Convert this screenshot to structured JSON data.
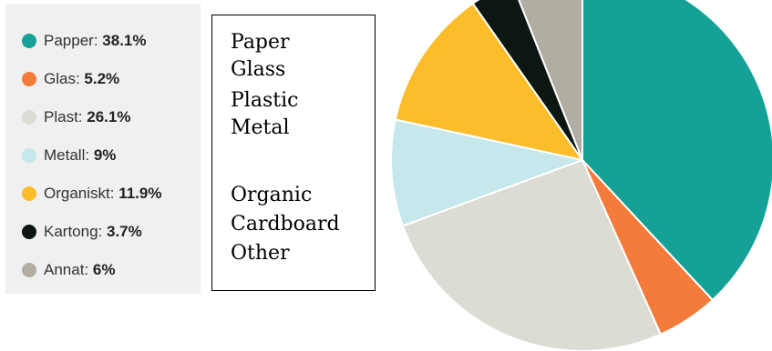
{
  "chart_data": {
    "type": "pie",
    "slices": [
      {
        "label": "Papper",
        "value": 38.1,
        "display": "38.1%",
        "color": "#16a196"
      },
      {
        "label": "Glas",
        "value": 5.2,
        "display": "5.2%",
        "color": "#f47b3b"
      },
      {
        "label": "Plast",
        "value": 26.1,
        "display": "26.1%",
        "color": "#dcdcd5"
      },
      {
        "label": "Metall",
        "value": 9,
        "display": "9%",
        "color": "#c6e7ec"
      },
      {
        "label": "Organiskt",
        "value": 11.9,
        "display": "11.9%",
        "color": "#fbbd2a"
      },
      {
        "label": "Kartong",
        "value": 3.7,
        "display": "3.7%",
        "color": "#0c1712"
      },
      {
        "label": "Annat",
        "value": 6,
        "display": "6%",
        "color": "#b2ada3"
      }
    ],
    "start_angle_deg": 0,
    "direction": "clockwise",
    "legend_placement": "left"
  },
  "translations": [
    "Paper",
    "Glass",
    "Plastic",
    "Metal",
    "Organic",
    "Cardboard",
    "Other"
  ]
}
